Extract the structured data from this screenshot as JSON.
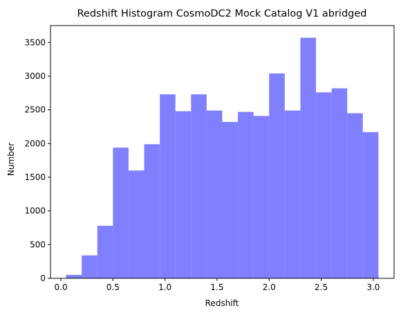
{
  "chart_data": {
    "type": "bar",
    "title": "Redshift Histogram CosmoDC2 Mock Catalog V1 abridged",
    "xlabel": "Redshift",
    "ylabel": "Number",
    "xlim": [
      -0.1,
      3.2
    ],
    "ylim": [
      0,
      3750
    ],
    "xticks": [
      0.0,
      0.5,
      1.0,
      1.5,
      2.0,
      2.5,
      3.0
    ],
    "xtick_labels": [
      "0.0",
      "0.5",
      "1.0",
      "1.5",
      "2.0",
      "2.5",
      "3.0"
    ],
    "yticks": [
      0,
      500,
      1000,
      1500,
      2000,
      2500,
      3000,
      3500
    ],
    "ytick_labels": [
      "0",
      "500",
      "1000",
      "1500",
      "2000",
      "2500",
      "3000",
      "3500"
    ],
    "bar_color": "#8080ff",
    "bins": [
      {
        "x0": 0.05,
        "x1": 0.2,
        "value": 50
      },
      {
        "x0": 0.2,
        "x1": 0.35,
        "value": 340
      },
      {
        "x0": 0.35,
        "x1": 0.5,
        "value": 780
      },
      {
        "x0": 0.5,
        "x1": 0.65,
        "value": 1940
      },
      {
        "x0": 0.65,
        "x1": 0.8,
        "value": 1600
      },
      {
        "x0": 0.8,
        "x1": 0.95,
        "value": 1990
      },
      {
        "x0": 0.95,
        "x1": 1.1,
        "value": 2730
      },
      {
        "x0": 1.1,
        "x1": 1.25,
        "value": 2480
      },
      {
        "x0": 1.25,
        "x1": 1.4,
        "value": 2730
      },
      {
        "x0": 1.4,
        "x1": 1.55,
        "value": 2490
      },
      {
        "x0": 1.55,
        "x1": 1.7,
        "value": 2320
      },
      {
        "x0": 1.7,
        "x1": 1.85,
        "value": 2470
      },
      {
        "x0": 1.85,
        "x1": 2.0,
        "value": 2410
      },
      {
        "x0": 2.0,
        "x1": 2.15,
        "value": 3040
      },
      {
        "x0": 2.15,
        "x1": 2.3,
        "value": 2490
      },
      {
        "x0": 2.3,
        "x1": 2.45,
        "value": 3570
      },
      {
        "x0": 2.45,
        "x1": 2.6,
        "value": 2760
      },
      {
        "x0": 2.6,
        "x1": 2.75,
        "value": 2820
      },
      {
        "x0": 2.75,
        "x1": 2.9,
        "value": 2450
      },
      {
        "x0": 2.9,
        "x1": 3.05,
        "value": 2170
      }
    ]
  }
}
